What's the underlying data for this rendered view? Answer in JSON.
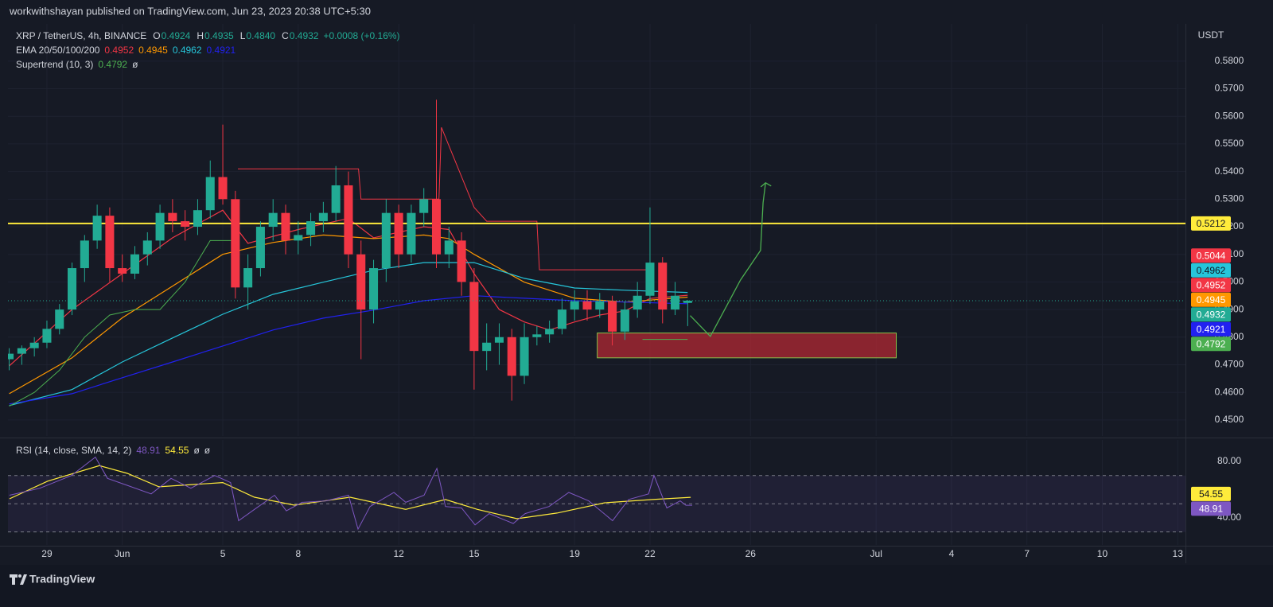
{
  "header": {
    "publisher": "workwithshayan published on TradingView.com, Jun 23, 2023 20:38 UTC+5:30"
  },
  "footer": {
    "brand": "TradingView"
  },
  "chart_data": {
    "type": "candlestick",
    "symbol": "XRP / TetherUS, 4h, BINANCE",
    "ohlc_legend": [
      {
        "label": "O",
        "value": "0.4924"
      },
      {
        "label": "H",
        "value": "0.4935"
      },
      {
        "label": "L",
        "value": "0.4840"
      },
      {
        "label": "C",
        "value": "0.4932"
      }
    ],
    "change": "+0.0008 (+0.16%)",
    "currency": "USDT",
    "up_color": "#22ab94",
    "down_color": "#f23645",
    "x": [
      -1.5,
      -1,
      -0.5,
      0,
      0.5,
      1,
      1.5,
      2,
      2.5,
      3,
      3.5,
      4,
      4.5,
      5,
      5.5,
      6,
      6.5,
      7,
      7.5,
      8,
      8.5,
      9,
      9.5,
      10,
      10.5,
      11,
      11.5,
      12,
      12.5,
      13,
      13.5,
      14,
      14.5,
      15,
      15.5,
      16,
      16.5,
      17,
      17.5,
      18,
      18.5,
      19,
      19.5,
      20,
      20.5,
      21,
      21.5,
      22,
      22.5,
      23,
      23.5,
      24,
      24.5,
      25,
      25.5
    ],
    "open": [
      0.472,
      0.474,
      0.476,
      0.478,
      0.483,
      0.49,
      0.505,
      0.515,
      0.524,
      0.505,
      0.503,
      0.51,
      0.515,
      0.525,
      0.522,
      0.52,
      0.526,
      0.538,
      0.53,
      0.498,
      0.505,
      0.52,
      0.525,
      0.515,
      0.517,
      0.522,
      0.525,
      0.535,
      0.51,
      0.49,
      0.505,
      0.525,
      0.51,
      0.525,
      0.53,
      0.51,
      0.515,
      0.5,
      0.475,
      0.478,
      0.48,
      0.466,
      0.48,
      0.481,
      0.483,
      0.49,
      0.493,
      0.49,
      0.493,
      0.482,
      0.49,
      0.495,
      0.507,
      0.49,
      0.4924
    ],
    "high": [
      0.476,
      0.477,
      0.48,
      0.486,
      0.492,
      0.507,
      0.517,
      0.528,
      0.527,
      0.51,
      0.513,
      0.518,
      0.528,
      0.53,
      0.526,
      0.53,
      0.544,
      0.557,
      0.533,
      0.51,
      0.522,
      0.53,
      0.528,
      0.522,
      0.525,
      0.529,
      0.542,
      0.54,
      0.515,
      0.508,
      0.53,
      0.528,
      0.528,
      0.534,
      0.566,
      0.52,
      0.518,
      0.505,
      0.485,
      0.485,
      0.483,
      0.485,
      0.484,
      0.486,
      0.494,
      0.497,
      0.497,
      0.496,
      0.495,
      0.493,
      0.5,
      0.527,
      0.509,
      0.5,
      0.4935
    ],
    "low": [
      0.468,
      0.47,
      0.473,
      0.476,
      0.481,
      0.488,
      0.5,
      0.512,
      0.5,
      0.5,
      0.501,
      0.506,
      0.512,
      0.518,
      0.515,
      0.517,
      0.523,
      0.528,
      0.494,
      0.49,
      0.502,
      0.515,
      0.51,
      0.51,
      0.513,
      0.518,
      0.522,
      0.505,
      0.472,
      0.485,
      0.5,
      0.505,
      0.507,
      0.52,
      0.505,
      0.505,
      0.495,
      0.461,
      0.468,
      0.47,
      0.457,
      0.463,
      0.477,
      0.478,
      0.481,
      0.486,
      0.486,
      0.487,
      0.477,
      0.479,
      0.487,
      0.492,
      0.485,
      0.488,
      0.484
    ],
    "close": [
      0.474,
      0.476,
      0.478,
      0.483,
      0.49,
      0.505,
      0.515,
      0.524,
      0.505,
      0.503,
      0.51,
      0.515,
      0.525,
      0.522,
      0.52,
      0.526,
      0.538,
      0.53,
      0.498,
      0.505,
      0.52,
      0.525,
      0.515,
      0.517,
      0.522,
      0.525,
      0.535,
      0.51,
      0.49,
      0.505,
      0.525,
      0.51,
      0.525,
      0.53,
      0.51,
      0.515,
      0.5,
      0.475,
      0.478,
      0.48,
      0.466,
      0.48,
      0.481,
      0.483,
      0.49,
      0.493,
      0.49,
      0.493,
      0.482,
      0.49,
      0.495,
      0.507,
      0.49,
      0.495,
      0.4932
    ],
    "xlim": [
      -1.55,
      45.31
    ],
    "xticks": [
      {
        "value": 0,
        "label": "29"
      },
      {
        "value": 3,
        "label": "Jun"
      },
      {
        "value": 7,
        "label": "5"
      },
      {
        "value": 10,
        "label": "8"
      },
      {
        "value": 14,
        "label": "12"
      },
      {
        "value": 17,
        "label": "15"
      },
      {
        "value": 21,
        "label": "19"
      },
      {
        "value": 24,
        "label": "22"
      },
      {
        "value": 28,
        "label": "26"
      },
      {
        "value": 33,
        "label": "Jul"
      },
      {
        "value": 36,
        "label": "4"
      },
      {
        "value": 39,
        "label": "7"
      },
      {
        "value": 42,
        "label": "10"
      },
      {
        "value": 45,
        "label": "13"
      }
    ],
    "ylim": [
      0.4442,
      0.5935
    ],
    "yticks": [
      {
        "value": 0.58,
        "label": "0.5800"
      },
      {
        "value": 0.57,
        "label": "0.5700"
      },
      {
        "value": 0.56,
        "label": "0.5600"
      },
      {
        "value": 0.55,
        "label": "0.5500"
      },
      {
        "value": 0.54,
        "label": "0.5400"
      },
      {
        "value": 0.53,
        "label": "0.5300"
      },
      {
        "value": 0.52,
        "label": "0.5200"
      },
      {
        "value": 0.51,
        "label": "0.5100"
      },
      {
        "value": 0.5,
        "label": "0.5000"
      },
      {
        "value": 0.49,
        "label": "0.4900"
      },
      {
        "value": 0.48,
        "label": "0.4800"
      },
      {
        "value": 0.47,
        "label": "0.4700"
      },
      {
        "value": 0.46,
        "label": "0.4600"
      },
      {
        "value": 0.45,
        "label": "0.4500"
      }
    ],
    "grid": true,
    "ema": {
      "label": "EMA 20/50/100/200",
      "series": [
        {
          "color": "#f23645",
          "last": 0.4952,
          "x": [
            -1.5,
            1,
            3,
            5,
            7,
            8,
            10,
            12,
            13,
            15,
            16,
            17,
            18,
            19,
            20,
            21,
            22,
            23,
            24,
            25.5
          ],
          "values": [
            0.4696,
            0.49,
            0.503,
            0.516,
            0.526,
            0.514,
            0.519,
            0.523,
            0.516,
            0.52,
            0.519,
            0.503,
            0.49,
            0.4855,
            0.4826,
            0.4855,
            0.488,
            0.4895,
            0.494,
            0.4952
          ]
        },
        {
          "color": "#ff9800",
          "last": 0.4945,
          "x": [
            -1.5,
            1,
            3,
            5,
            7,
            9,
            11,
            13,
            15,
            16,
            17,
            19,
            21,
            23,
            25.5
          ],
          "values": [
            0.4595,
            0.4725,
            0.487,
            0.4985,
            0.51,
            0.5143,
            0.517,
            0.5157,
            0.517,
            0.5157,
            0.51,
            0.4999,
            0.4941,
            0.4927,
            0.4945
          ]
        },
        {
          "color": "#26c6da",
          "last": 0.4962,
          "x": [
            -1.5,
            1,
            3,
            5,
            7,
            9,
            11,
            13,
            15,
            17,
            19,
            21,
            23,
            25.5
          ],
          "values": [
            0.4552,
            0.461,
            0.471,
            0.4797,
            0.4883,
            0.4955,
            0.4999,
            0.5042,
            0.507,
            0.507,
            0.5013,
            0.4978,
            0.497,
            0.4962
          ]
        },
        {
          "color": "#2121f0",
          "last": 0.4921,
          "x": [
            -1.5,
            1,
            3,
            5,
            7,
            9,
            11,
            13,
            15,
            17,
            19,
            21,
            23,
            25.5
          ],
          "values": [
            0.4558,
            0.4595,
            0.4653,
            0.471,
            0.4768,
            0.4826,
            0.4869,
            0.4898,
            0.4932,
            0.495,
            0.4941,
            0.4932,
            0.4927,
            0.4921
          ]
        }
      ]
    },
    "supertrend": {
      "label": "Supertrend (10, 3)",
      "value": 0.4792,
      "symbol": "ø",
      "up": {
        "color": "#4caf50",
        "x": [
          -1.5,
          -0.5,
          0.5,
          1.5,
          2.5,
          3.5,
          4.5,
          5.5,
          6.5,
          7.5,
          15,
          23.7,
          25.5
        ],
        "values": [
          0.455,
          0.46,
          0.468,
          0.48,
          0.488,
          0.49,
          0.49,
          0.5,
          0.515,
          0.515,
          null,
          0.4792,
          0.4792
        ]
      },
      "down": {
        "color": "#f23645",
        "x": [
          7.6,
          12.4,
          12.5,
          15.6,
          15.7,
          17,
          17.5,
          19.5,
          19.6,
          24
        ],
        "values": [
          0.541,
          0.541,
          0.53,
          0.53,
          0.556,
          0.527,
          0.522,
          0.522,
          0.5044,
          0.5044
        ]
      }
    },
    "hline": {
      "value": 0.5212,
      "color": "#ffeb3b"
    },
    "zone": {
      "x": [
        21.9,
        33.8
      ],
      "y": [
        0.4725,
        0.4815
      ],
      "color": "#b22833"
    },
    "projection": {
      "color": "#4caf50",
      "x": [
        25.6,
        26.4,
        27.6,
        28.4,
        28.5,
        28.6
      ],
      "values": [
        0.4878,
        0.4803,
        0.5007,
        0.5114,
        0.5287,
        0.5359
      ]
    },
    "rsi": {
      "label": "RSI (14, close, SMA, 14, 2)",
      "value": 48.91,
      "sma_value": 54.55,
      "symbols": [
        "ø",
        "ø"
      ],
      "ylim": [
        20.8,
        95.2
      ],
      "yticks": [
        {
          "value": 80,
          "label": "80.00"
        },
        {
          "value": 40,
          "label": "40.00"
        }
      ],
      "bands": [
        70,
        50,
        30
      ],
      "line": {
        "color": "#7e57c2",
        "x": [
          -1.49,
          -0.28,
          0.98,
          1.93,
          2.41,
          3.2,
          4.15,
          4.94,
          5.73,
          6.68,
          7.31,
          7.63,
          8.26,
          9.06,
          9.53,
          10.16,
          11.11,
          12.0,
          12.38,
          12.86,
          13.81,
          14.28,
          15.01,
          15.52,
          15.86,
          16.5,
          17.04,
          17.6,
          18.56,
          19.03,
          19.98,
          20.77,
          21.56,
          22.51,
          23.15,
          23.94,
          24.16,
          24.67,
          25.2,
          25.43,
          25.68
        ],
        "values": [
          56,
          61,
          70,
          83,
          68,
          63,
          57,
          68,
          61,
          70,
          65,
          38,
          46,
          56,
          45,
          51,
          52,
          56,
          32,
          48,
          58,
          51,
          56,
          75,
          48,
          47,
          35,
          43,
          36,
          43,
          48,
          58,
          52,
          38,
          53,
          57,
          70,
          47,
          52,
          48.91,
          48.91
        ]
      },
      "sma": {
        "color": "#ffeb3b",
        "x": [
          -1.49,
          0.03,
          2.09,
          3.2,
          4.46,
          7.0,
          8.26,
          9.85,
          12.06,
          14.28,
          15.86,
          17.13,
          18.71,
          20.3,
          22.2,
          24.1,
          25.62
        ],
        "values": [
          53.5,
          66,
          77,
          71.5,
          62,
          65,
          54.6,
          49,
          54.6,
          46,
          53,
          46,
          39.4,
          43.4,
          50.7,
          53,
          54.55
        ]
      }
    }
  }
}
